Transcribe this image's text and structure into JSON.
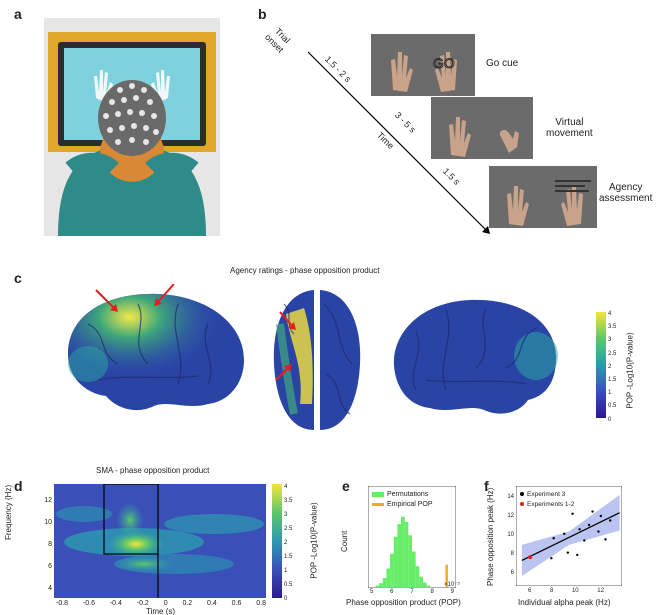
{
  "panels": {
    "a": {
      "letter": "a"
    },
    "b": {
      "letter": "b",
      "trial_onset": [
        "Trial",
        "onset"
      ],
      "time_label": "Time",
      "intervals": [
        "1.5 - 2 s",
        "3 - 5 s",
        "1.5 s"
      ],
      "stage_labels": [
        "Go cue",
        "Virtual\nmovement",
        "Agency\nassessment"
      ],
      "go_text": "GO"
    },
    "c": {
      "letter": "c",
      "title": "Agency ratings - phase opposition product",
      "colorbar_label": "POP -Log10(P-value)",
      "colorbar_ticks": [
        "4",
        "3.5",
        "3",
        "2.5",
        "2",
        "1.5",
        "1",
        "0.5",
        "0"
      ]
    },
    "d": {
      "letter": "d",
      "title": "SMA - phase opposition product",
      "ylabel": "Frequency (Hz)",
      "xlabel": "Time (s)",
      "yticks": [
        "12",
        "10",
        "8",
        "6",
        "4"
      ],
      "xticks": [
        "-0.8",
        "-0.6",
        "-0.4",
        "-0.2",
        "0",
        "0.2",
        "0.4",
        "0.6",
        "0.8"
      ],
      "colorbar_label": "POP -Log10(P-value)",
      "colorbar_ticks": [
        "4",
        "3.5",
        "3",
        "2.5",
        "2",
        "1.5",
        "1",
        "0.5",
        "0"
      ]
    },
    "e": {
      "letter": "e",
      "ylabel": "Count",
      "xlabel": "Phase opposition product (POP)",
      "xticks": [
        "5",
        "6",
        "7",
        "8",
        "9"
      ],
      "exponent": "×10⁻⁵",
      "legend": [
        "Permutations",
        "Empirical POP"
      ],
      "colors": {
        "permutations": "#66ee66",
        "empirical": "#f5a623"
      }
    },
    "f": {
      "letter": "f",
      "ylabel": "Phase opposition peak (Hz)",
      "xlabel": "Individual alpha peak (Hz)",
      "yticks": [
        "14",
        "12",
        "10",
        "8",
        "6"
      ],
      "xticks": [
        "6",
        "8",
        "10",
        "12"
      ],
      "legend": [
        "Experiment 3",
        "Experiments 1-2"
      ]
    }
  },
  "chart_data": [
    {
      "type": "bar",
      "panel": "e",
      "title": "",
      "xlabel": "Phase opposition product (POP)",
      "ylabel": "Count",
      "x_unit_exponent": -5,
      "series": [
        {
          "name": "Permutations",
          "x": [
            5.2,
            5.4,
            5.6,
            5.8,
            6.0,
            6.2,
            6.4,
            6.6,
            6.8,
            7.0,
            7.2,
            7.4,
            7.6,
            7.8,
            8.0
          ],
          "values": [
            2,
            5,
            12,
            25,
            45,
            68,
            85,
            95,
            88,
            70,
            48,
            28,
            14,
            6,
            2
          ]
        },
        {
          "name": "Empirical POP",
          "x": [
            9.0
          ],
          "values": [
            30
          ]
        }
      ],
      "xlim": [
        4.8,
        9.4
      ]
    },
    {
      "type": "scatter",
      "panel": "f",
      "xlabel": "Individual alpha peak (Hz)",
      "ylabel": "Phase opposition peak (Hz)",
      "xlim": [
        5,
        14
      ],
      "ylim": [
        5.5,
        14.5
      ],
      "series": [
        {
          "name": "Experiment 3",
          "x": [
            8.0,
            8.2,
            9.1,
            9.4,
            9.8,
            10.2,
            10.4,
            10.8,
            11.2,
            11.5,
            12.0,
            12.2,
            12.6,
            13.0
          ],
          "y": [
            8.0,
            9.8,
            10.2,
            8.5,
            12.0,
            8.3,
            10.6,
            9.6,
            11.0,
            12.2,
            10.4,
            11.8,
            9.7,
            11.4
          ]
        },
        {
          "name": "Experiments 1-2",
          "x": [
            6.2
          ],
          "y": [
            8.1
          ]
        }
      ],
      "fit_line": {
        "x": [
          5.5,
          13.8
        ],
        "y": [
          7.8,
          12.1
        ]
      }
    }
  ]
}
